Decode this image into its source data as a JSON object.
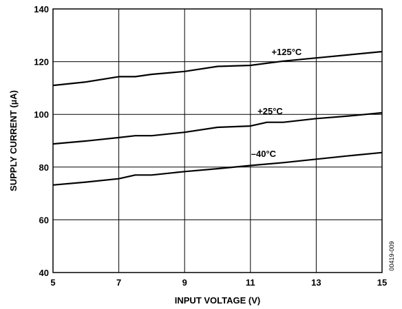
{
  "chart_data": {
    "type": "line",
    "xlabel": "INPUT VOLTAGE (V)",
    "ylabel": "SUPPLY CURRENT (µA)",
    "xlim": [
      5,
      15
    ],
    "ylim": [
      40,
      140
    ],
    "xticks": [
      5,
      7,
      9,
      11,
      13,
      15
    ],
    "yticks": [
      40,
      60,
      80,
      100,
      120,
      140
    ],
    "grid": true,
    "series": [
      {
        "name": "+125°C",
        "x": [
          5,
          6,
          7,
          7.5,
          8,
          9,
          10,
          11,
          12,
          13,
          14,
          15
        ],
        "y": [
          111,
          112.3,
          114.3,
          114.3,
          115.2,
          116.3,
          118.2,
          118.6,
          120.2,
          121.4,
          122.6,
          123.8
        ]
      },
      {
        "name": "+25°C",
        "x": [
          5,
          6,
          7,
          7.5,
          8,
          9,
          10,
          11,
          11.5,
          12,
          13,
          14,
          15
        ],
        "y": [
          88.8,
          89.9,
          91.2,
          91.9,
          91.9,
          93.2,
          95.1,
          95.6,
          97,
          97,
          98.4,
          99.4,
          100.6
        ]
      },
      {
        "name": "–40°C",
        "x": [
          5,
          6,
          7,
          7.5,
          8,
          9,
          10,
          11,
          12,
          13,
          14,
          15
        ],
        "y": [
          73.2,
          74.3,
          75.6,
          77,
          77,
          78.3,
          79.4,
          80.6,
          81.7,
          83,
          84.3,
          85.5
        ]
      }
    ]
  },
  "figure_id": "00419-009"
}
